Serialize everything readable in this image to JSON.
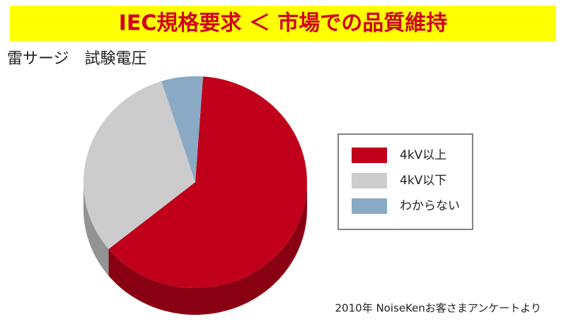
{
  "chart_data": {
    "type": "pie",
    "title": "IEC規格要求 ＜ 市場での品質維持",
    "subtitle": "雷サージ　試験電圧",
    "categories": [
      "4kV以上",
      "4kV以下",
      "わからない"
    ],
    "values": [
      63,
      31,
      6
    ],
    "colors": [
      "#c0001a",
      "#cccccc",
      "#8aa9c4"
    ],
    "legend": "right",
    "note": "2010年 NoiseKenお客さまアンケートより"
  }
}
